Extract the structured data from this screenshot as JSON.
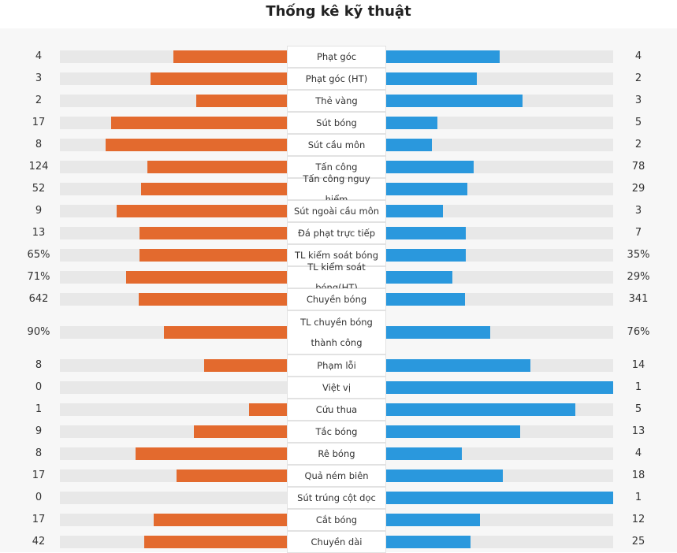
{
  "title": "Thống kê kỹ thuật",
  "rows": [
    {
      "label": "Phạt góc",
      "home": 4,
      "away": 4
    },
    {
      "label": "Phạt góc (HT)",
      "home": 3,
      "away": 2
    },
    {
      "label": "Thẻ vàng",
      "home": 2,
      "away": 3
    },
    {
      "label": "Sút bóng",
      "home": 17,
      "away": 5
    },
    {
      "label": "Sút cầu môn",
      "home": 8,
      "away": 2
    },
    {
      "label": "Tấn công",
      "home": 124,
      "away": 78
    },
    {
      "label": "Tấn công nguy hiểm",
      "home": 52,
      "away": 29
    },
    {
      "label": "Sút ngoài cầu môn",
      "home": 9,
      "away": 3
    },
    {
      "label": "Đá phạt trực tiếp",
      "home": 13,
      "away": 7
    },
    {
      "label": "TL kiểm soát bóng",
      "home": 65,
      "away": 35,
      "home_label": "65%",
      "away_label": "35%"
    },
    {
      "label": "TL kiểm soát bóng(HT)",
      "home": 71,
      "away": 29,
      "home_label": "71%",
      "away_label": "29%"
    },
    {
      "label": "Chuyền bóng",
      "home": 642,
      "away": 341
    },
    {
      "label": "TL chuyền bóng thành công",
      "home": 90,
      "away": 76,
      "home_label": "90%",
      "away_label": "76%"
    },
    {
      "label": "Phạm lỗi",
      "home": 8,
      "away": 14
    },
    {
      "label": "Việt vị",
      "home": 0,
      "away": 1
    },
    {
      "label": "Cứu thua",
      "home": 1,
      "away": 5
    },
    {
      "label": "Tắc bóng",
      "home": 9,
      "away": 13
    },
    {
      "label": "Rê bóng",
      "home": 8,
      "away": 4
    },
    {
      "label": "Quả ném biên",
      "home": 17,
      "away": 18
    },
    {
      "label": "Sút trúng cột dọc",
      "home": 0,
      "away": 1
    },
    {
      "label": "Cắt bóng",
      "home": 17,
      "away": 12
    },
    {
      "label": "Chuyền dài",
      "home": 42,
      "away": 25
    }
  ]
}
